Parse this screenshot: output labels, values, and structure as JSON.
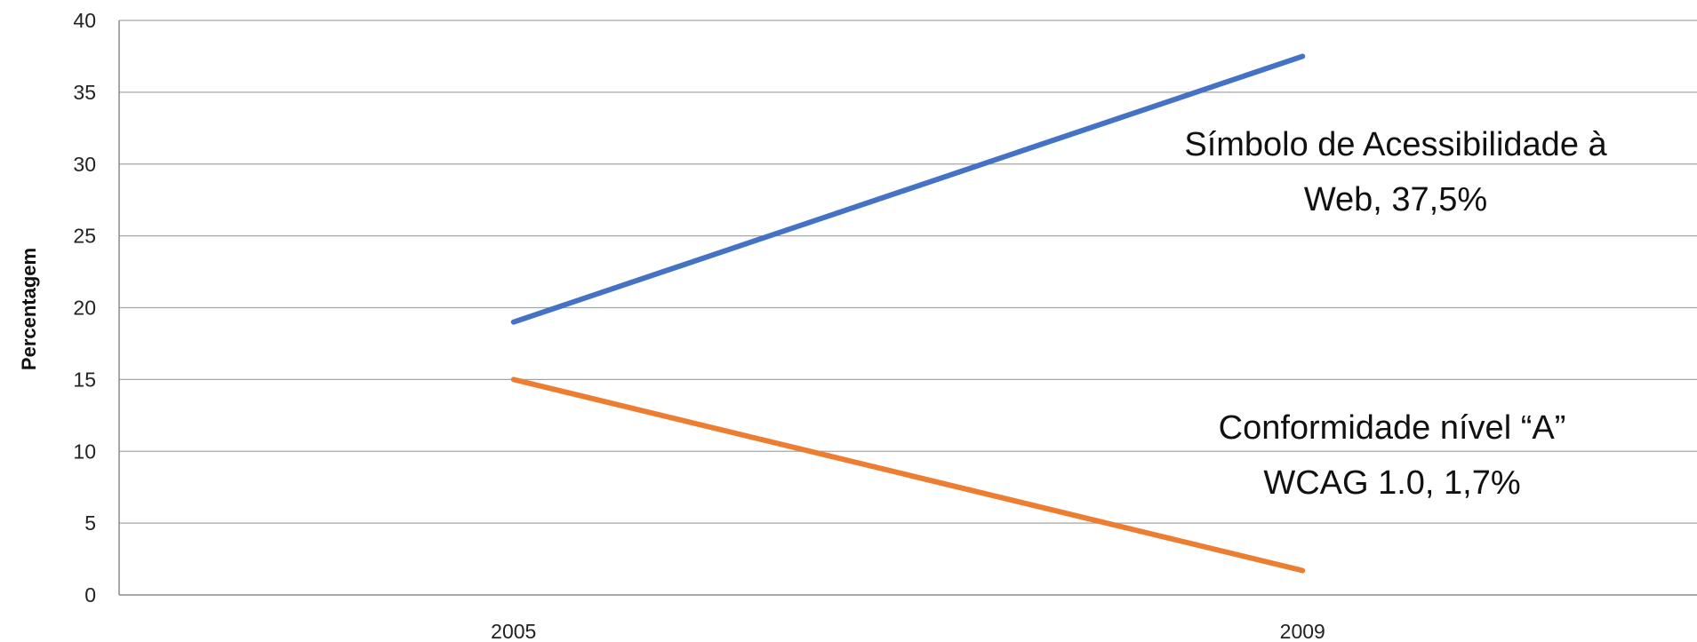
{
  "chart_data": {
    "type": "line",
    "title": "",
    "xlabel": "",
    "ylabel": "Percentagem",
    "categories": [
      "2005",
      "2009"
    ],
    "ylim": [
      0,
      40
    ],
    "yticks": [
      0,
      5,
      10,
      15,
      20,
      25,
      30,
      35,
      40
    ],
    "grid": true,
    "legend": "none",
    "series": [
      {
        "values": [
          19,
          37.5
        ],
        "color": "#4472C4"
      },
      {
        "values": [
          15,
          1.7
        ],
        "color": "#ED7D31"
      }
    ],
    "annotations": [
      {
        "lines": [
          "Símbolo de Acessibilidade à",
          "Web, 37,5%"
        ]
      },
      {
        "lines": [
          "Conformidade nível “A”",
          "WCAG 1.0, 1,7%"
        ]
      }
    ]
  }
}
